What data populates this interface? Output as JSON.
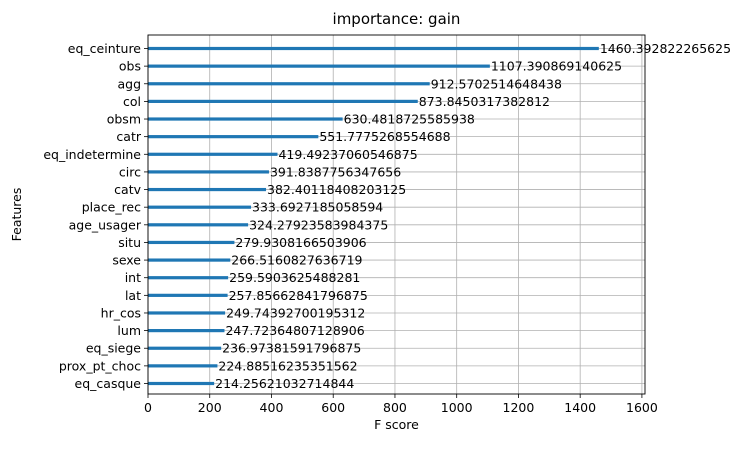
{
  "chart_data": {
    "type": "bar",
    "orientation": "horizontal",
    "title": "importance: gain",
    "xlabel": "F score",
    "ylabel": "Features",
    "xlim": [
      0,
      1610
    ],
    "xticks": [
      0,
      200,
      400,
      600,
      800,
      1000,
      1200,
      1400,
      1600
    ],
    "grid": true,
    "bar_color": "#1f77b4",
    "categories": [
      "eq_ceinture",
      "obs",
      "agg",
      "col",
      "obsm",
      "catr",
      "eq_indetermine",
      "circ",
      "catv",
      "place_rec",
      "age_usager",
      "situ",
      "sexe",
      "int",
      "lat",
      "hr_cos",
      "lum",
      "eq_siege",
      "prox_pt_choc",
      "eq_casque"
    ],
    "values": [
      1460.392822265625,
      1107.390869140625,
      912.5702514648438,
      873.8450317382812,
      630.4818725585938,
      551.7775268554688,
      419.49237060546875,
      391.8387756347656,
      382.40118408203125,
      333.6927185058594,
      324.27923583984375,
      279.9308166503906,
      266.5160827636719,
      259.5903625488281,
      257.85662841796875,
      249.74392700195312,
      247.72364807128906,
      236.97381591796875,
      224.88516235351562,
      214.25621032714844
    ],
    "value_labels": [
      "1460.392822265625",
      "1107.390869140625",
      "912.5702514648438",
      "873.8450317382812",
      "630.4818725585938",
      "551.7775268554688",
      "419.49237060546875",
      "391.8387756347656",
      "382.40118408203125",
      "333.6927185058594",
      "324.27923583984375",
      "279.9308166503906",
      "266.5160827636719",
      "259.5903625488281",
      "257.85662841796875",
      "249.74392700195312",
      "247.72364807128906",
      "236.97381591796875",
      "224.88516235351562",
      "214.25621032714844"
    ]
  }
}
